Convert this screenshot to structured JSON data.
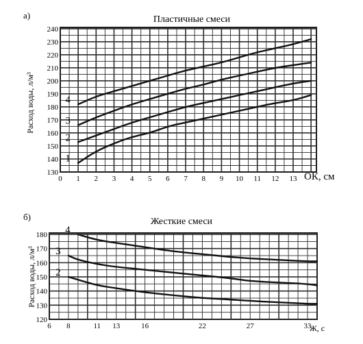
{
  "chart_data": [
    {
      "panel": "а)",
      "type": "line",
      "title": "Пластичные смеси",
      "xlabel": "ОК, см",
      "ylabel": "Расход воды, л/м³",
      "x_ticks": [
        "0",
        "1",
        "2",
        "3",
        "4",
        "5",
        "6",
        "7",
        "8",
        "9",
        "10",
        "11",
        "12",
        "13"
      ],
      "y_ticks": [
        "130",
        "140",
        "150",
        "160",
        "170",
        "180",
        "190",
        "200",
        "210",
        "220",
        "230",
        "240"
      ],
      "xlim": [
        0,
        14.3
      ],
      "ylim": [
        130,
        241
      ],
      "grid": true,
      "series": [
        {
          "name": "1",
          "x": [
            1,
            2,
            3,
            4,
            5,
            6,
            7,
            8,
            9,
            10,
            11,
            12,
            13,
            14
          ],
          "y": [
            137,
            146,
            152,
            157,
            160,
            165,
            168,
            171,
            174,
            177,
            180,
            183,
            185,
            189
          ]
        },
        {
          "name": "2",
          "x": [
            1,
            2,
            3,
            4,
            5,
            6,
            7,
            8,
            9,
            10,
            11,
            12,
            13,
            14
          ],
          "y": [
            153,
            158,
            163,
            168,
            172,
            176,
            180,
            183,
            186,
            189,
            192,
            195,
            198,
            200
          ]
        },
        {
          "name": "3",
          "x": [
            1,
            2,
            3,
            4,
            5,
            6,
            7,
            8,
            9,
            10,
            11,
            12,
            13,
            14
          ],
          "y": [
            166,
            172,
            177,
            182,
            186,
            190,
            194,
            197,
            201,
            204,
            207,
            210,
            212,
            214
          ]
        },
        {
          "name": "4",
          "x": [
            1,
            2,
            3,
            4,
            5,
            6,
            7,
            8,
            9,
            10,
            11,
            12,
            13,
            14
          ],
          "y": [
            182,
            188,
            192,
            196,
            200,
            204,
            208,
            211,
            214,
            218,
            222,
            225,
            228,
            232
          ]
        }
      ]
    },
    {
      "panel": "б)",
      "type": "line",
      "title": "Жесткие смеси",
      "xlabel": "Ж, с",
      "ylabel": "Расход воды, л/м³",
      "x_ticks": [
        "6",
        "8",
        "11",
        "13",
        "16",
        "22",
        "27",
        "33"
      ],
      "y_ticks": [
        "120",
        "130",
        "140",
        "150",
        "160",
        "170",
        "180"
      ],
      "xlim": [
        6,
        34
      ],
      "ylim": [
        120,
        181
      ],
      "grid": true,
      "series": [
        {
          "name": "2",
          "x": [
            8,
            9,
            11,
            13,
            16,
            19,
            22,
            25,
            27,
            30,
            33,
            34
          ],
          "y": [
            150,
            148,
            144,
            142,
            139,
            137,
            135,
            134,
            133,
            132,
            131,
            131
          ]
        },
        {
          "name": "3",
          "x": [
            8,
            9,
            11,
            13,
            16,
            19,
            22,
            25,
            27,
            30,
            33,
            34
          ],
          "y": [
            165,
            162,
            159,
            157,
            155,
            153,
            151,
            149,
            147,
            146,
            145,
            144
          ]
        },
        {
          "name": "4",
          "x": [
            9,
            11,
            13,
            16,
            19,
            22,
            25,
            27,
            30,
            33,
            34
          ],
          "y": [
            180,
            176,
            174,
            171,
            168,
            166,
            164,
            163,
            162,
            161,
            161
          ]
        }
      ]
    }
  ]
}
